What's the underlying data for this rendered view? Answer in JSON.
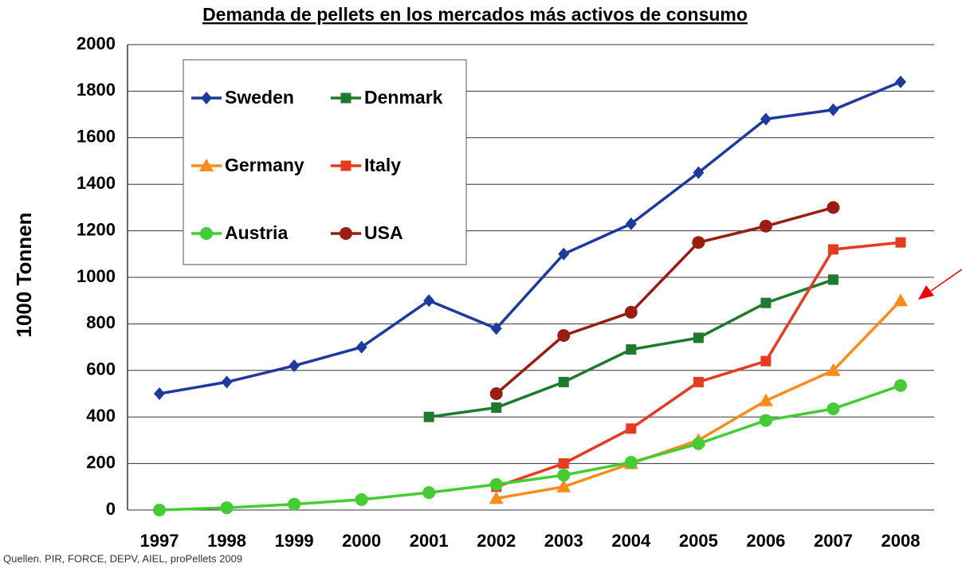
{
  "chart_data": {
    "type": "line",
    "title": "Demanda de pellets en los mercados más activos de consumo",
    "y_label": "1000 Tonnen",
    "source": "Quellen. PIR, FORCE, DEPV, AIEL, proPellets 2009",
    "categories": [
      "1997",
      "1998",
      "1999",
      "2000",
      "2001",
      "2002",
      "2003",
      "2004",
      "2005",
      "2006",
      "2007",
      "2008"
    ],
    "series": [
      {
        "name": "Sweden",
        "color": "#1f3a9e",
        "marker": "diamond",
        "values": [
          500,
          550,
          620,
          700,
          900,
          780,
          1100,
          1230,
          1450,
          1680,
          1720,
          1840
        ]
      },
      {
        "name": "Denmark",
        "color": "#1e7a2e",
        "marker": "square",
        "values": [
          null,
          null,
          null,
          null,
          400,
          440,
          550,
          690,
          740,
          890,
          990,
          null
        ]
      },
      {
        "name": "Germany",
        "color": "#ff8c1a",
        "marker": "triangle",
        "values": [
          null,
          null,
          null,
          null,
          null,
          50,
          100,
          200,
          300,
          470,
          600,
          900
        ]
      },
      {
        "name": "Italy",
        "color": "#e83a1e",
        "marker": "square",
        "values": [
          null,
          null,
          null,
          null,
          null,
          100,
          200,
          350,
          550,
          640,
          1120,
          1150
        ]
      },
      {
        "name": "Austria",
        "color": "#44cc33",
        "marker": "circle",
        "values": [
          0,
          10,
          25,
          45,
          75,
          110,
          150,
          205,
          285,
          385,
          435,
          535
        ]
      },
      {
        "name": "USA",
        "color": "#9b1c10",
        "marker": "circle",
        "values": [
          null,
          null,
          null,
          null,
          null,
          500,
          750,
          850,
          1150,
          1220,
          1300,
          null
        ]
      }
    ],
    "ylim": [
      0,
      2000
    ],
    "yticks": [
      0,
      200,
      400,
      600,
      800,
      1000,
      1200,
      1400,
      1600,
      1800,
      2000
    ],
    "grid": true,
    "legend": "upper left"
  }
}
